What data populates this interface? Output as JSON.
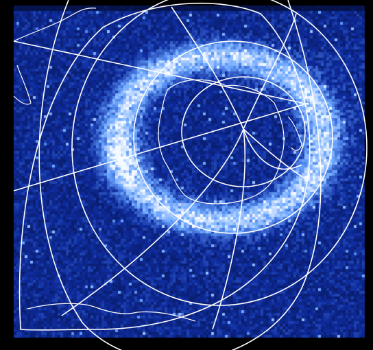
{
  "image": {
    "subject": "polar-aurora",
    "colors": {
      "background": "#000000",
      "glow_dark": "#0a1a6b",
      "glow_mid": "#1b3fb0",
      "glow_bright": "#7fa8ff",
      "glow_peak": "#e8f0ff",
      "grid": "#ffffff"
    }
  }
}
